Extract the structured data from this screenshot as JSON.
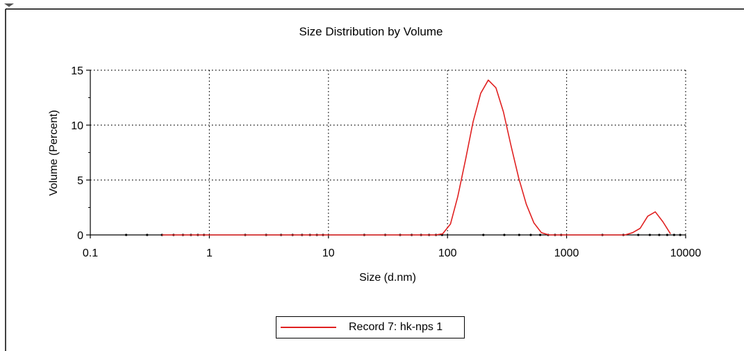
{
  "chart_data": {
    "type": "line",
    "title": "Size Distribution by Volume",
    "xlabel": "Size (d.nm)",
    "ylabel": "Volume (Percent)",
    "xscale": "log",
    "xlim": [
      0.1,
      10000
    ],
    "ylim": [
      0,
      15
    ],
    "xticks": [
      0.1,
      1,
      10,
      100,
      1000,
      10000
    ],
    "xtick_labels": [
      "0.1",
      "1",
      "10",
      "100",
      "1000",
      "10000"
    ],
    "yticks": [
      0,
      5,
      10,
      15
    ],
    "ytick_labels": [
      "0",
      "5",
      "10",
      "15"
    ],
    "grid": true,
    "legend_position": "bottom-center",
    "series": [
      {
        "name": "Record 7: hk-nps 1",
        "color": "#e02020",
        "x": [
          0.4,
          1,
          10,
          80,
          91,
          106,
          122,
          142,
          164,
          190,
          220,
          255,
          295,
          342,
          396,
          459,
          531,
          615,
          712,
          1000,
          3090,
          3580,
          4150,
          4800,
          5560,
          6440,
          7460
        ],
        "y": [
          0,
          0,
          0,
          0,
          0.1,
          1.0,
          3.5,
          6.9,
          10.3,
          12.9,
          14.1,
          13.4,
          11.2,
          8.1,
          5.2,
          2.8,
          1.1,
          0.2,
          0,
          0,
          0,
          0.2,
          0.6,
          1.7,
          2.1,
          1.2,
          0.1
        ]
      }
    ]
  }
}
